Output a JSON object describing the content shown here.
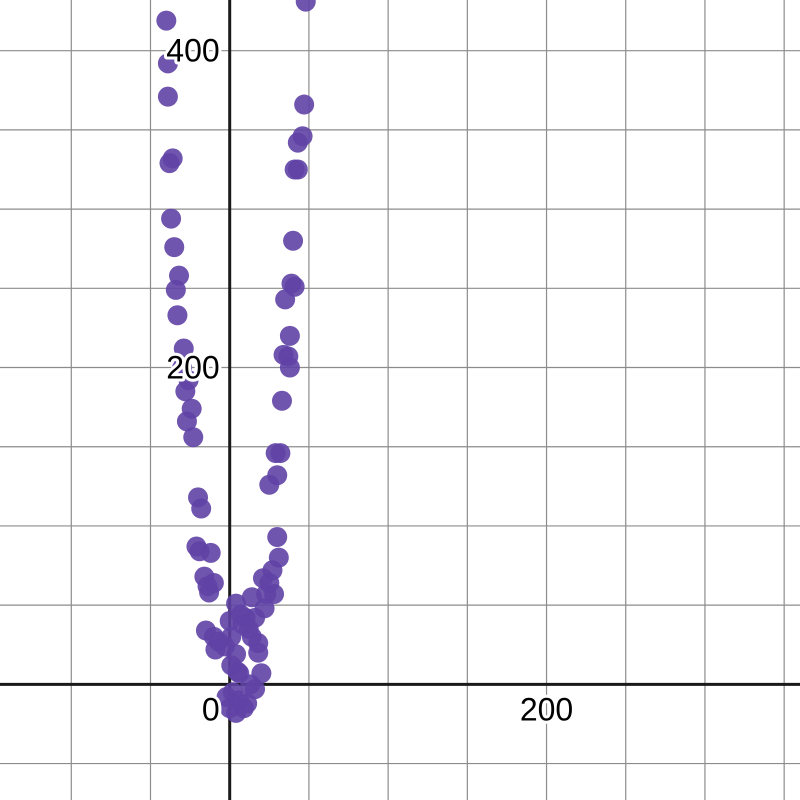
{
  "chart_data": {
    "type": "scatter",
    "title": "",
    "xlabel": "",
    "ylabel": "",
    "xlim": [
      -145,
      360
    ],
    "ylim": [
      -73,
      432
    ],
    "grid": true,
    "grid_step": 50,
    "x_tick_labels": [
      {
        "value": 0,
        "label": "0"
      },
      {
        "value": 200,
        "label": "200"
      }
    ],
    "y_tick_labels": [
      {
        "value": 200,
        "label": "200"
      },
      {
        "value": 400,
        "label": "400"
      }
    ],
    "point_color": "#6042a6",
    "axis_color": "#1a1a1a",
    "grid_color": "#8c8c8c",
    "series": [
      {
        "points": [
          [
            -40,
            419
          ],
          [
            -39,
            392
          ],
          [
            -39,
            371
          ],
          [
            -36,
            332
          ],
          [
            -38,
            329
          ],
          [
            -37,
            294
          ],
          [
            -35,
            276
          ],
          [
            -32,
            258
          ],
          [
            -34,
            249
          ],
          [
            -33,
            233
          ],
          [
            -29,
            212
          ],
          [
            -30,
            200
          ],
          [
            -26,
            192
          ],
          [
            -28,
            185
          ],
          [
            -24,
            174
          ],
          [
            -27,
            166
          ],
          [
            -23,
            156
          ],
          [
            -20,
            118
          ],
          [
            -18,
            111
          ],
          [
            -21,
            87
          ],
          [
            -19,
            84
          ],
          [
            -12,
            83
          ],
          [
            -16,
            68
          ],
          [
            -10,
            64
          ],
          [
            -14,
            62
          ],
          [
            -13,
            58
          ],
          [
            -15,
            34
          ],
          [
            -10,
            30
          ],
          [
            -7,
            27
          ],
          [
            -9,
            22
          ],
          [
            -3,
            24
          ],
          [
            0,
            40
          ],
          [
            1,
            30
          ],
          [
            4,
            19
          ],
          [
            6,
            7
          ],
          [
            8,
            38
          ],
          [
            10,
            42
          ],
          [
            14,
            55
          ],
          [
            16,
            42
          ],
          [
            18,
            26
          ],
          [
            20,
            7
          ],
          [
            21,
            67
          ],
          [
            23,
            57
          ],
          [
            25,
            64
          ],
          [
            22,
            48
          ],
          [
            27,
            72
          ],
          [
            28,
            57
          ],
          [
            30,
            93
          ],
          [
            31,
            80
          ],
          [
            25,
            126
          ],
          [
            30,
            132
          ],
          [
            29,
            146
          ],
          [
            32,
            146
          ],
          [
            33,
            179
          ],
          [
            34,
            208
          ],
          [
            37,
            207
          ],
          [
            38,
            200
          ],
          [
            38,
            220
          ],
          [
            35,
            243
          ],
          [
            39,
            253
          ],
          [
            41,
            251
          ],
          [
            40,
            280
          ],
          [
            41,
            325
          ],
          [
            43,
            325
          ],
          [
            43,
            342
          ],
          [
            46,
            346
          ],
          [
            47,
            366
          ],
          [
            48,
            431
          ],
          [
            4,
            51
          ],
          [
            7,
            44
          ],
          [
            12,
            35
          ],
          [
            14,
            30
          ],
          [
            18,
            20
          ],
          [
            6,
            -10
          ],
          [
            9,
            -15
          ],
          [
            2,
            -5
          ],
          [
            -2,
            -8
          ],
          [
            0,
            -15
          ],
          [
            4,
            -18
          ],
          [
            11,
            -12
          ],
          [
            16,
            -3
          ],
          [
            13,
            0
          ],
          [
            5,
            8
          ],
          [
            1,
            12
          ]
        ]
      }
    ]
  }
}
